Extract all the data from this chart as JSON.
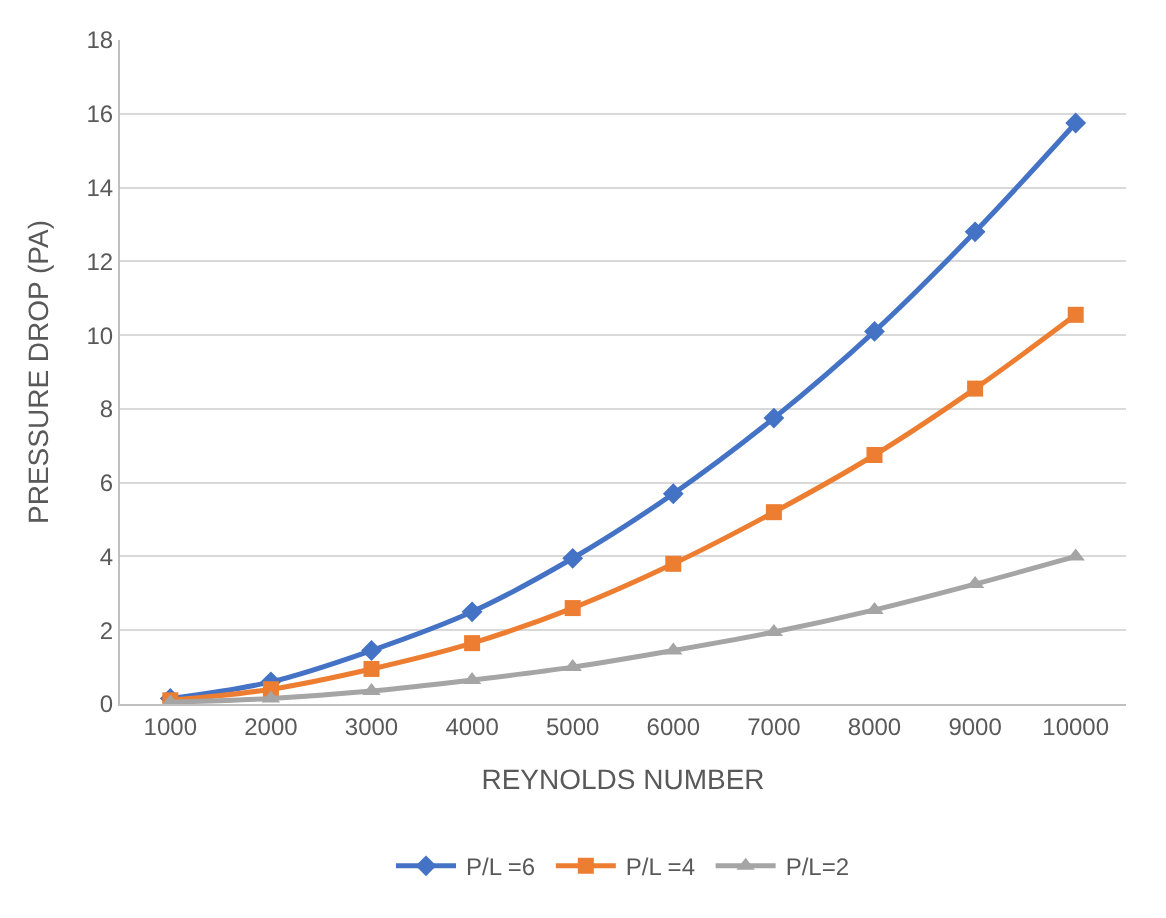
{
  "chart_data": {
    "type": "line",
    "xlabel": "REYNOLDS NUMBER",
    "ylabel": "PRESSURE DROP (PA)",
    "categories": [
      "1000",
      "2000",
      "3000",
      "4000",
      "5000",
      "6000",
      "7000",
      "8000",
      "9000",
      "10000"
    ],
    "series": [
      {
        "name": "P/L =6",
        "color": "#4472c4",
        "marker": "diamond",
        "values": [
          0.15,
          0.6,
          1.45,
          2.5,
          3.95,
          5.7,
          7.75,
          10.1,
          12.8,
          15.75
        ]
      },
      {
        "name": "P/L =4",
        "color": "#ed7d31",
        "marker": "square",
        "values": [
          0.1,
          0.4,
          0.95,
          1.65,
          2.6,
          3.8,
          5.2,
          6.75,
          8.55,
          10.55
        ]
      },
      {
        "name": "P/L=2",
        "color": "#a5a5a5",
        "marker": "triangle",
        "values": [
          0.05,
          0.15,
          0.35,
          0.65,
          1.0,
          1.45,
          1.95,
          2.55,
          3.25,
          4.0
        ]
      }
    ],
    "ylim": [
      0,
      18
    ],
    "yticks": [
      0,
      2,
      4,
      6,
      8,
      10,
      12,
      14,
      16,
      18
    ],
    "grid": "y",
    "legend": "bottom",
    "line_style": "solid"
  }
}
